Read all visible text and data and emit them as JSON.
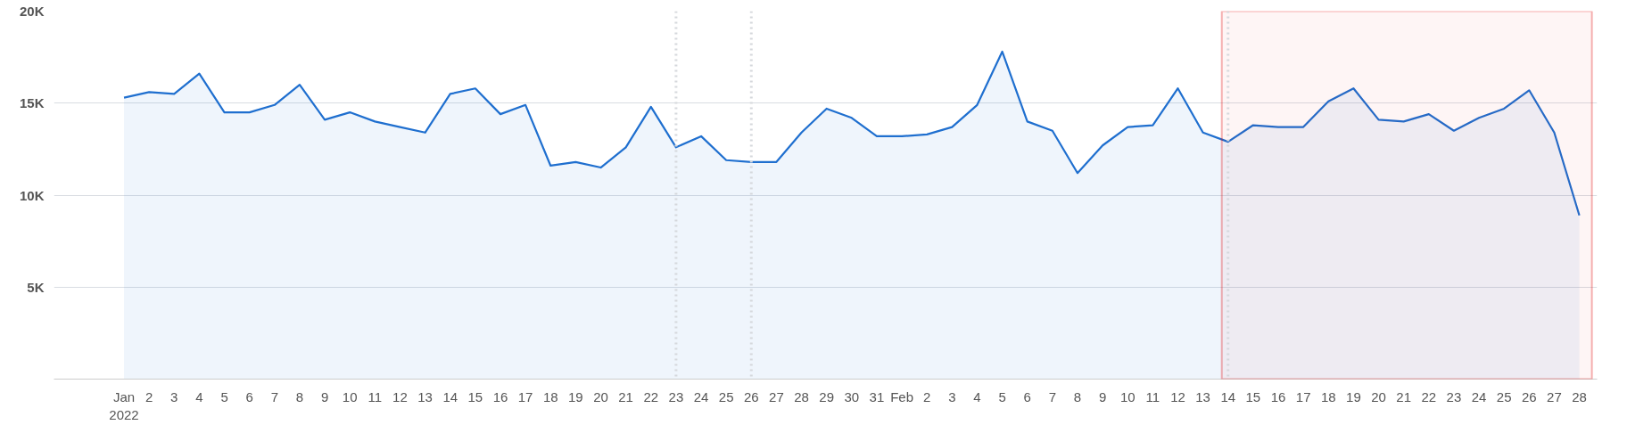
{
  "chart_data": {
    "type": "area",
    "x": [
      "2022-01-01",
      "2022-01-02",
      "2022-01-03",
      "2022-01-04",
      "2022-01-05",
      "2022-01-06",
      "2022-01-07",
      "2022-01-08",
      "2022-01-09",
      "2022-01-10",
      "2022-01-11",
      "2022-01-12",
      "2022-01-13",
      "2022-01-14",
      "2022-01-15",
      "2022-01-16",
      "2022-01-17",
      "2022-01-18",
      "2022-01-19",
      "2022-01-20",
      "2022-01-21",
      "2022-01-22",
      "2022-01-23",
      "2022-01-24",
      "2022-01-25",
      "2022-01-26",
      "2022-01-27",
      "2022-01-28",
      "2022-01-29",
      "2022-01-30",
      "2022-01-31",
      "2022-02-01",
      "2022-02-02",
      "2022-02-03",
      "2022-02-04",
      "2022-02-05",
      "2022-02-06",
      "2022-02-07",
      "2022-02-08",
      "2022-02-09",
      "2022-02-10",
      "2022-02-11",
      "2022-02-12",
      "2022-02-13",
      "2022-02-14",
      "2022-02-15",
      "2022-02-16",
      "2022-02-17",
      "2022-02-18",
      "2022-02-19",
      "2022-02-20",
      "2022-02-21",
      "2022-02-22",
      "2022-02-23",
      "2022-02-24",
      "2022-02-25",
      "2022-02-26",
      "2022-02-27",
      "2022-02-28"
    ],
    "series": [
      {
        "color": "#1f6fcf",
        "values": [
          15300,
          15600,
          15500,
          16600,
          14500,
          14500,
          14900,
          16000,
          14100,
          14500,
          14000,
          13700,
          13400,
          15500,
          15800,
          14400,
          14900,
          11600,
          11800,
          11500,
          12600,
          14800,
          12600,
          13200,
          11900,
          11800,
          11800,
          13400,
          14700,
          14200,
          13200,
          13200,
          13300,
          13700,
          14900,
          17800,
          14000,
          13500,
          11200,
          12700,
          13700,
          13800,
          15800,
          13400,
          12900,
          13800,
          13700,
          13700,
          15100,
          15800,
          14100,
          14000,
          14400,
          13500,
          14200,
          14700,
          15700,
          13400,
          8900
        ]
      }
    ],
    "xlim": [
      "2021-12-29T05:00",
      "2022-02-28T17:00"
    ],
    "ylim": [
      0,
      20000
    ],
    "yticks": [
      {
        "value": 0,
        "label": null
      },
      {
        "value": 5000,
        "label": "5K"
      },
      {
        "value": 10000,
        "label": "10K"
      },
      {
        "value": 15000,
        "label": "15K"
      },
      {
        "value": 20000,
        "label": "20K"
      }
    ],
    "xticks": [
      {
        "value": "2022-01-01",
        "label": "Jan 2022"
      },
      {
        "value": "2022-01-02",
        "label": "2"
      },
      {
        "value": "2022-01-03",
        "label": "3"
      },
      {
        "value": "2022-01-04",
        "label": "4"
      },
      {
        "value": "2022-01-05",
        "label": "5"
      },
      {
        "value": "2022-01-06",
        "label": "6"
      },
      {
        "value": "2022-01-07",
        "label": "7"
      },
      {
        "value": "2022-01-08",
        "label": "8"
      },
      {
        "value": "2022-01-09",
        "label": "9"
      },
      {
        "value": "2022-01-10",
        "label": "10"
      },
      {
        "value": "2022-01-11",
        "label": "11"
      },
      {
        "value": "2022-01-12",
        "label": "12"
      },
      {
        "value": "2022-01-13",
        "label": "13"
      },
      {
        "value": "2022-01-14",
        "label": "14"
      },
      {
        "value": "2022-01-15",
        "label": "15"
      },
      {
        "value": "2022-01-16",
        "label": "16"
      },
      {
        "value": "2022-01-17",
        "label": "17"
      },
      {
        "value": "2022-01-18",
        "label": "18"
      },
      {
        "value": "2022-01-19",
        "label": "19"
      },
      {
        "value": "2022-01-20",
        "label": "20"
      },
      {
        "value": "2022-01-21",
        "label": "21"
      },
      {
        "value": "2022-01-22",
        "label": "22"
      },
      {
        "value": "2022-01-23",
        "label": "23"
      },
      {
        "value": "2022-01-24",
        "label": "24"
      },
      {
        "value": "2022-01-25",
        "label": "25"
      },
      {
        "value": "2022-01-26",
        "label": "26"
      },
      {
        "value": "2022-01-27",
        "label": "27"
      },
      {
        "value": "2022-01-28",
        "label": "28"
      },
      {
        "value": "2022-01-29",
        "label": "29"
      },
      {
        "value": "2022-01-30",
        "label": "30"
      },
      {
        "value": "2022-01-31",
        "label": "31"
      },
      {
        "value": "2022-02-01",
        "label": "Feb"
      },
      {
        "value": "2022-02-02",
        "label": "2"
      },
      {
        "value": "2022-02-03",
        "label": "3"
      },
      {
        "value": "2022-02-04",
        "label": "4"
      },
      {
        "value": "2022-02-05",
        "label": "5"
      },
      {
        "value": "2022-02-06",
        "label": "6"
      },
      {
        "value": "2022-02-07",
        "label": "7"
      },
      {
        "value": "2022-02-08",
        "label": "8"
      },
      {
        "value": "2022-02-09",
        "label": "9"
      },
      {
        "value": "2022-02-10",
        "label": "10"
      },
      {
        "value": "2022-02-11",
        "label": "11"
      },
      {
        "value": "2022-02-12",
        "label": "12"
      },
      {
        "value": "2022-02-13",
        "label": "13"
      },
      {
        "value": "2022-02-14",
        "label": "14"
      },
      {
        "value": "2022-02-15",
        "label": "15"
      },
      {
        "value": "2022-02-16",
        "label": "16"
      },
      {
        "value": "2022-02-17",
        "label": "17"
      },
      {
        "value": "2022-02-18",
        "label": "18"
      },
      {
        "value": "2022-02-19",
        "label": "19"
      },
      {
        "value": "2022-02-20",
        "label": "20"
      },
      {
        "value": "2022-02-21",
        "label": "21"
      },
      {
        "value": "2022-02-22",
        "label": "22"
      },
      {
        "value": "2022-02-23",
        "label": "23"
      },
      {
        "value": "2022-02-24",
        "label": "24"
      },
      {
        "value": "2022-02-25",
        "label": "25"
      },
      {
        "value": "2022-02-26",
        "label": "26"
      },
      {
        "value": "2022-02-27",
        "label": "27"
      },
      {
        "value": "2022-02-28",
        "label": "28"
      }
    ],
    "grid": "y",
    "ref_lines": [
      {
        "axis": "x",
        "value": "2022-01-23",
        "color": "#d5d8dc",
        "line_style": "dotted"
      },
      {
        "axis": "x",
        "value": "2022-01-26",
        "color": "#d5d8dc",
        "line_style": "dotted"
      },
      {
        "axis": "x",
        "value": "2022-02-14",
        "color": "#d5d8dc",
        "line_style": "dotted"
      }
    ],
    "bands": [
      {
        "axis": "x",
        "from": "2022-02-13T18:00",
        "to": "2022-02-28T12:00",
        "color": "#e00000"
      }
    ]
  }
}
